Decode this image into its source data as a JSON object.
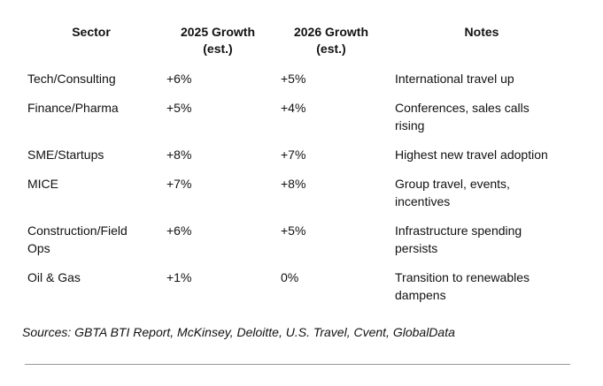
{
  "table": {
    "headers": {
      "sector": "Sector",
      "growth_2025": [
        "2025 Growth",
        "(est.)"
      ],
      "growth_2026": [
        "2026 Growth",
        "(est.)"
      ],
      "notes": "Notes"
    },
    "rows": [
      {
        "sector": [
          "Tech/Consulting"
        ],
        "g2025": "+6%",
        "g2026": "+5%",
        "notes": [
          "International travel up"
        ]
      },
      {
        "sector": [
          "Finance/Pharma"
        ],
        "g2025": "+5%",
        "g2026": "+4%",
        "notes": [
          "Conferences, sales calls",
          "rising"
        ]
      },
      {
        "sector": [
          "SME/Startups"
        ],
        "g2025": "+8%",
        "g2026": "+7%",
        "notes": [
          "Highest new travel adoption"
        ]
      },
      {
        "sector": [
          "MICE"
        ],
        "g2025": "+7%",
        "g2026": "+8%",
        "notes": [
          "Group travel, events,",
          "incentives"
        ]
      },
      {
        "sector": [
          "Construction/Field",
          "Ops"
        ],
        "g2025": "+6%",
        "g2026": "+5%",
        "notes": [
          "Infrastructure spending",
          "persists"
        ]
      },
      {
        "sector": [
          "Oil & Gas"
        ],
        "g2025": "+1%",
        "g2026": "0%",
        "notes": [
          "Transition to renewables",
          "dampens"
        ]
      }
    ]
  },
  "sources": "Sources: GBTA BTI Report, McKinsey, Deloitte, U.S. Travel, Cvent, GlobalData"
}
